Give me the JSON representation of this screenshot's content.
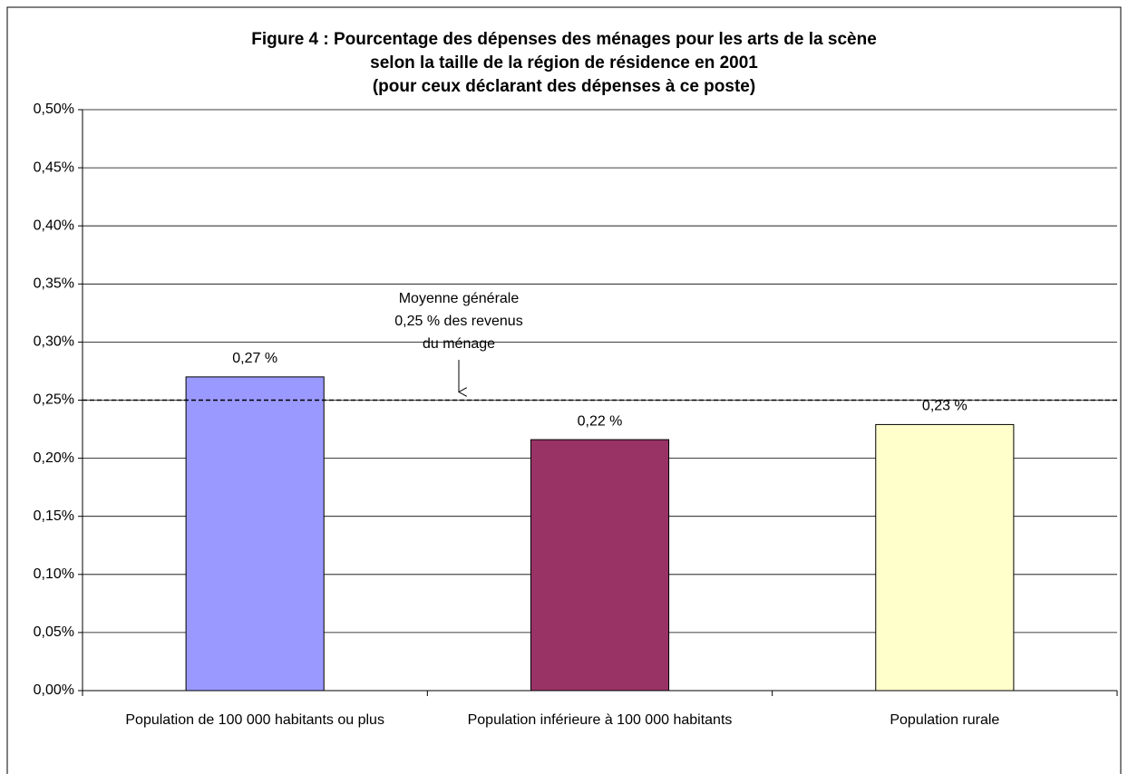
{
  "chart_data": {
    "type": "bar",
    "title": [
      "Figure 4 : Pourcentage des dépenses des ménages pour les arts de la scène",
      "selon la taille de la région de résidence en 2001",
      "(pour ceux déclarant des dépenses à ce poste)"
    ],
    "categories": [
      "Population de 100 000 habitants ou plus",
      "Population inférieure à 100 000 habitants",
      "Population rurale"
    ],
    "values": [
      0.27,
      0.216,
      0.229
    ],
    "value_labels": [
      "0,27 %",
      "0,22 %",
      "0,23 %"
    ],
    "colors": [
      "#9999ff",
      "#993366",
      "#ffffcc"
    ],
    "ylim": [
      0,
      0.5
    ],
    "yticks": [
      {
        "value": 0,
        "label": "0,00%"
      },
      {
        "value": 0.05,
        "label": "0,05%"
      },
      {
        "value": 0.1,
        "label": "0,10%"
      },
      {
        "value": 0.15,
        "label": "0,15%"
      },
      {
        "value": 0.2,
        "label": "0,20%"
      },
      {
        "value": 0.25,
        "label": "0,25%"
      },
      {
        "value": 0.3,
        "label": "0,30%"
      },
      {
        "value": 0.35,
        "label": "0,35%"
      },
      {
        "value": 0.4,
        "label": "0,40%"
      },
      {
        "value": 0.45,
        "label": "0,45%"
      },
      {
        "value": 0.5,
        "label": "0,50%"
      }
    ],
    "grid": true,
    "reference_line": {
      "value": 0.25,
      "annotation": [
        "Moyenne générale",
        "0,25 % des revenus",
        "du ménage"
      ]
    }
  }
}
